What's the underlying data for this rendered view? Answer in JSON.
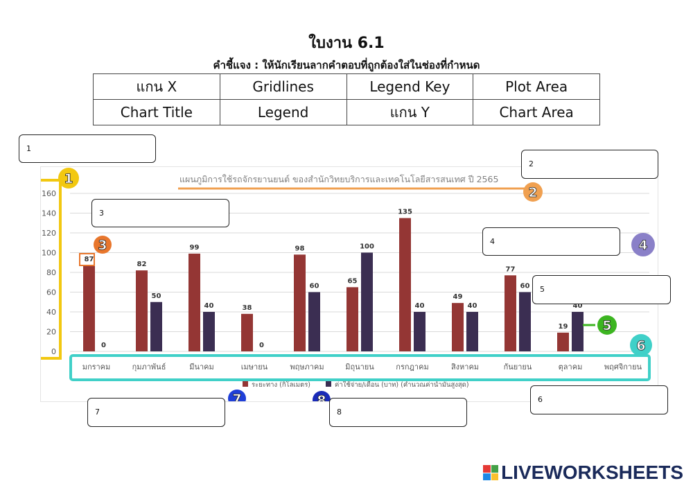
{
  "worksheet": {
    "title": "ใบงาน 6.1",
    "instruction": "คำชี้แจง : ให้นักเรียนลากคำตอบที่ถูกต้องใส่ในช่องที่กำหนด",
    "terms": [
      [
        "แกน X",
        "Gridlines",
        "Legend Key",
        "Plot Area"
      ],
      [
        "Chart Title",
        "Legend",
        "แกน Y",
        "Chart Area"
      ]
    ],
    "answer_boxes": [
      "1",
      "2",
      "3",
      "4",
      "5",
      "6",
      "7",
      "8"
    ],
    "markers": [
      "1",
      "2",
      "3",
      "4",
      "5",
      "6",
      "7",
      "8"
    ]
  },
  "chart_data": {
    "type": "bar",
    "title": "แผนภูมิการใช้รถจักรยานยนต์ ของสำนักวิทยบริการและเทคโนโลยีสารสนเทศ ปี 2565",
    "categories": [
      "มกราคม",
      "กุมภาพันธ์",
      "มีนาคม",
      "เมษายน",
      "พฤษภาคม",
      "มิถุนายน",
      "กรกฎาคม",
      "สิงหาคม",
      "กันยายน",
      "ตุลาคม",
      "พฤศจิกายน"
    ],
    "series": [
      {
        "name": "ระยะทาง (กิโลเมตร)",
        "color": "#943634",
        "values": [
          87,
          82,
          99,
          38,
          98,
          65,
          135,
          49,
          77,
          19,
          null
        ]
      },
      {
        "name": "ค่าใช้จ่าย/เดือน (บาท) (คำนวณค่าน้ำมันสูงสุด)",
        "color": "#3b2e52",
        "values": [
          0,
          50,
          40,
          0,
          60,
          100,
          40,
          40,
          60,
          40,
          null
        ]
      }
    ],
    "ylim": [
      0,
      160
    ],
    "yticks": [
      0,
      20,
      40,
      60,
      80,
      100,
      120,
      140,
      160
    ],
    "grid": true,
    "legend_position": "bottom"
  },
  "colors": {
    "marker_1": "#f2c811",
    "marker_2": "#f0a050",
    "marker_3": "#e8762c",
    "marker_4": "#8a80c8",
    "marker_5": "#3cb521",
    "marker_6": "#40d0c8",
    "marker_7": "#1f3fd8",
    "marker_8": "#1a2bb8"
  }
}
